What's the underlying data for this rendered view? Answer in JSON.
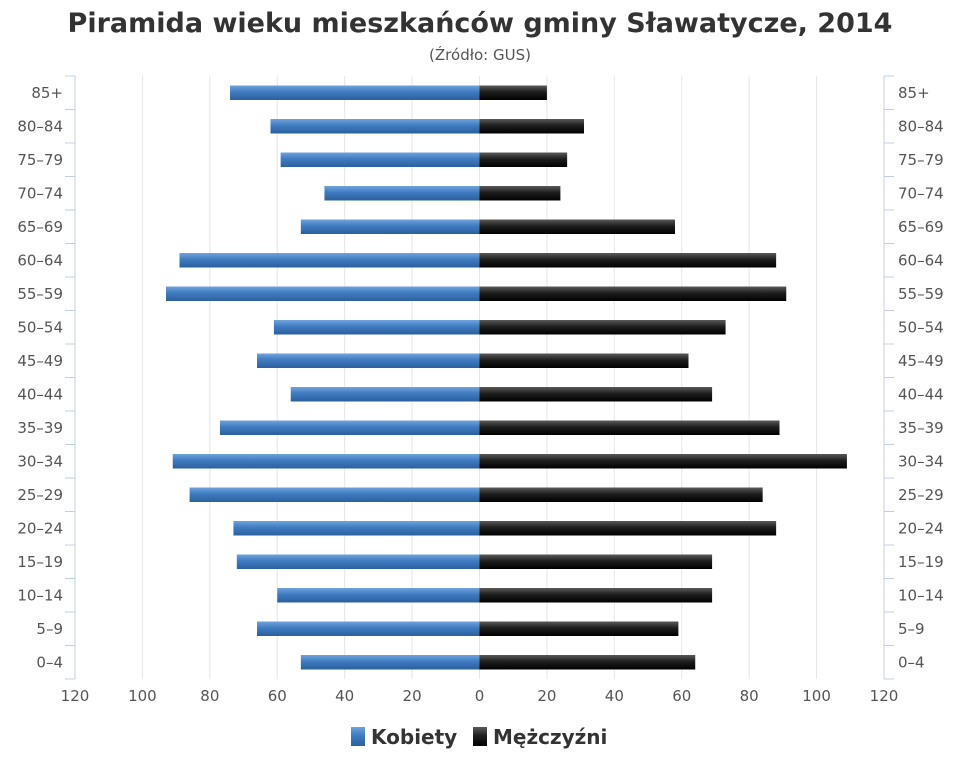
{
  "chart_data": {
    "type": "bar",
    "orientation": "horizontal-pyramid",
    "title": "Piramida wieku mieszkańców gminy Sławatycze, 2014",
    "subtitle": "(Źródło: GUS)",
    "categories": [
      "0-4",
      "5-9",
      "10-14",
      "15-19",
      "20-24",
      "25-29",
      "30-34",
      "35-39",
      "40-44",
      "45-49",
      "50-54",
      "55-59",
      "60-64",
      "65-69",
      "70-74",
      "75-79",
      "80-84",
      "85+"
    ],
    "category_labels": [
      "0–4",
      "5–9",
      "10–14",
      "15–19",
      "20–24",
      "25–29",
      "30–34",
      "35–39",
      "40–44",
      "45–49",
      "50–54",
      "55–59",
      "60–64",
      "65–69",
      "70–74",
      "75–79",
      "80–84",
      "85+"
    ],
    "series": [
      {
        "name": "Kobiety",
        "side": "left",
        "color": "#4a84c4",
        "values": [
          53,
          66,
          60,
          72,
          73,
          86,
          91,
          77,
          56,
          66,
          61,
          93,
          89,
          53,
          46,
          59,
          62,
          74
        ]
      },
      {
        "name": "Mężczyźni",
        "side": "right",
        "color": "#1a1a1a",
        "values": [
          64,
          59,
          69,
          69,
          88,
          84,
          109,
          89,
          69,
          62,
          73,
          91,
          88,
          58,
          24,
          26,
          31,
          20
        ]
      }
    ],
    "xlim": [
      -120,
      120
    ],
    "x_ticks": [
      -120,
      -100,
      -80,
      -60,
      -40,
      -20,
      0,
      20,
      40,
      60,
      80,
      100,
      120
    ],
    "x_tick_labels": [
      "120",
      "100",
      "80",
      "60",
      "40",
      "20",
      "0",
      "20",
      "40",
      "60",
      "80",
      "100",
      "120"
    ],
    "grid": true,
    "legend_position": "bottom-center"
  }
}
